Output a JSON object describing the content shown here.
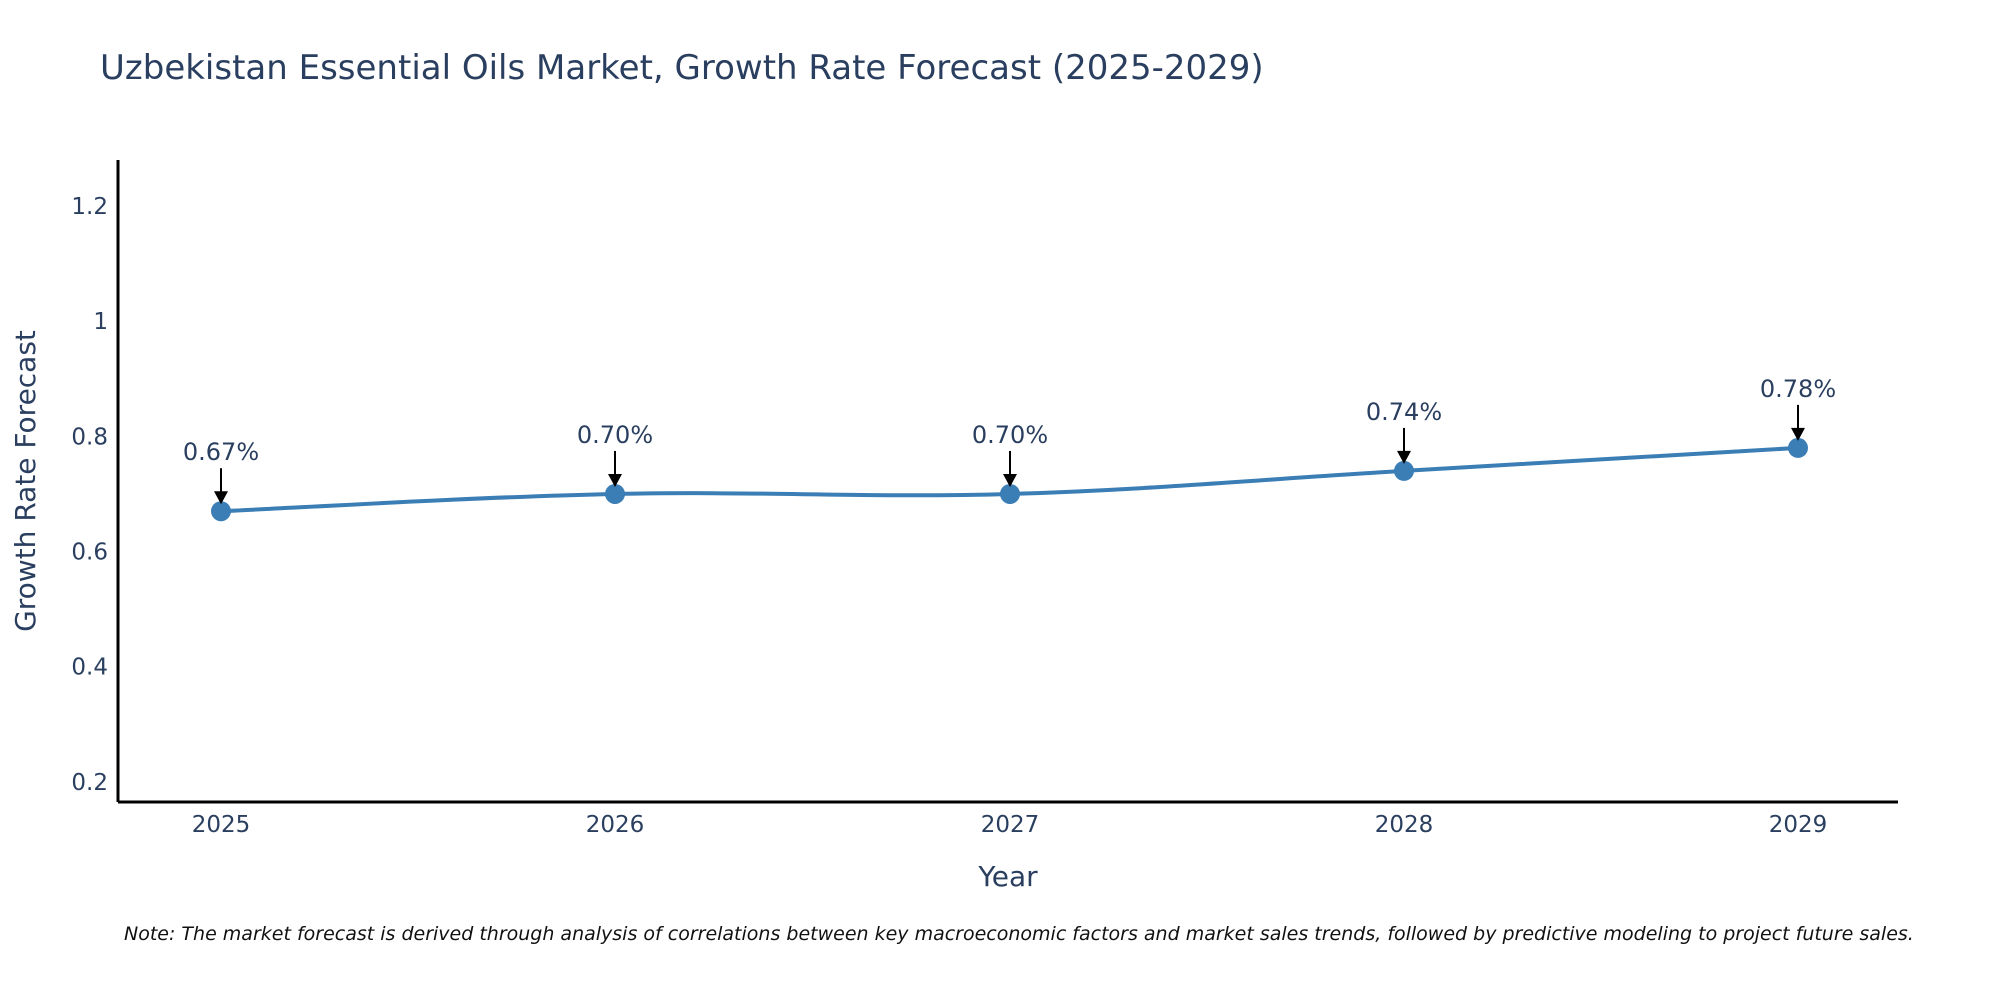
{
  "chart_data": {
    "type": "line",
    "title": "Uzbekistan Essential Oils Market, Growth Rate Forecast (2025-2029)",
    "xlabel": "Year",
    "ylabel": "Growth Rate Forecast",
    "categories": [
      "2025",
      "2026",
      "2027",
      "2028",
      "2029"
    ],
    "series": [
      {
        "name": "Growth Rate Forecast",
        "values": [
          0.67,
          0.7,
          0.7,
          0.74,
          0.78
        ],
        "data_labels": [
          "0.67%",
          "0.70%",
          "0.70%",
          "0.74%",
          "0.78%"
        ]
      }
    ],
    "ylim": [
      0.165,
      1.28
    ],
    "yticks": [
      0.2,
      0.4,
      0.6,
      0.8,
      1.0,
      1.2
    ],
    "ytick_labels": [
      "0.2",
      "0.4",
      "0.6",
      "0.8",
      "1",
      "1.2"
    ],
    "grid": false,
    "line_shape": "spline",
    "colors": {
      "line": "#3b7db5",
      "marker": "#3b7db5",
      "axis": "#000000",
      "text": "#2a3f5f",
      "arrow": "#000000"
    },
    "note": "Note: The market forecast is derived through analysis of correlations between key macroeconomic factors and market sales trends, followed by predictive modeling to project future sales."
  }
}
